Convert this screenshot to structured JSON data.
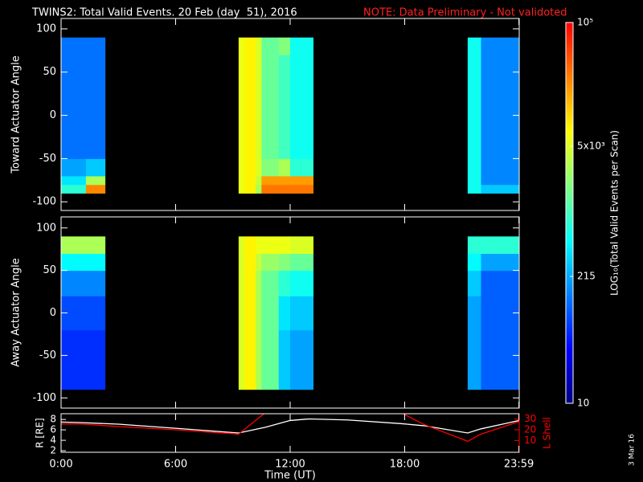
{
  "chart_data": {
    "type": "spectrogram",
    "title": "TWINS2: Total Valid Events. 20 Feb (day  51), 2016",
    "note": "NOTE: Data Preliminary - Not validoted",
    "xlabel": "Time (UT)",
    "xlim": [
      0,
      24
    ],
    "xticks": [
      {
        "value": 0,
        "label": "0:00"
      },
      {
        "value": 6,
        "label": "6:00"
      },
      {
        "value": 12,
        "label": "12:00"
      },
      {
        "value": 18,
        "label": "18:00"
      },
      {
        "value": 23.983,
        "label": "23:59"
      }
    ],
    "colorbar": {
      "label": "LOG₁₀(Total Valid Events per Scan)",
      "zlim": [
        10,
        100000
      ],
      "log": true,
      "ticks": [
        10,
        215,
        {
          "value": 5000,
          "label": "5x10³"
        },
        {
          "value": 100000,
          "label": "10⁵"
        }
      ],
      "colors": [
        "#00007f",
        "#0000ff",
        "#0080ff",
        "#00ffff",
        "#80ff80",
        "#ffff00",
        "#ff8000",
        "#ff0000"
      ]
    },
    "panels": [
      {
        "ylabel": "Toward Actuator Angle",
        "ylim": [
          -110,
          112
        ],
        "yticks": [
          -100,
          -50,
          0,
          50,
          100
        ],
        "y_edges": [
          -90,
          -80,
          -70,
          -50,
          -20,
          20,
          50,
          70,
          90
        ],
        "columns": [
          {
            "start": 0,
            "end": 1.3,
            "values": [
              800,
              400,
              200,
              120,
              120,
              120,
              120,
              120
            ]
          },
          {
            "start": 1.3,
            "end": 2.3,
            "values": [
              25000,
              3000,
              300,
              120,
              120,
              120,
              120,
              120
            ]
          },
          {
            "start": 9.3,
            "end": 9.6,
            "values": [
              6000,
              6000,
              6000,
              6000,
              6000,
              6000,
              6000,
              6000
            ]
          },
          {
            "start": 9.6,
            "end": 10.2,
            "values": [
              8000,
              8000,
              8000,
              8000,
              8000,
              8000,
              8000,
              8000
            ]
          },
          {
            "start": 10.2,
            "end": 10.5,
            "values": [
              3000,
              4000,
              5000,
              5000,
              5000,
              5000,
              5000,
              5000
            ]
          },
          {
            "start": 10.5,
            "end": 11.4,
            "values": [
              30000,
              20000,
              2000,
              1500,
              1500,
              1500,
              1500,
              1500
            ]
          },
          {
            "start": 11.4,
            "end": 12.0,
            "values": [
              30000,
              20000,
              3000,
              1000,
              1000,
              1000,
              1000,
              2000
            ]
          },
          {
            "start": 12.0,
            "end": 13.2,
            "values": [
              30000,
              20000,
              800,
              600,
              600,
              600,
              600,
              600
            ]
          },
          {
            "start": 21.3,
            "end": 22.0,
            "values": [
              600,
              600,
              600,
              600,
              600,
              600,
              600,
              600
            ]
          },
          {
            "start": 22.0,
            "end": 24,
            "values": [
              300,
              150,
              150,
              150,
              150,
              150,
              150,
              150
            ]
          }
        ]
      },
      {
        "ylabel": "Away Actuator Angle",
        "ylim": [
          -112,
          113
        ],
        "yticks": [
          -100,
          -50,
          0,
          50,
          100
        ],
        "y_edges": [
          -90,
          -80,
          -70,
          -50,
          -20,
          20,
          50,
          70,
          90
        ],
        "columns": [
          {
            "start": 0,
            "end": 2.3,
            "values": [
              60,
              60,
              60,
              60,
              80,
              150,
              500,
              3000
            ]
          },
          {
            "start": 9.3,
            "end": 9.6,
            "values": [
              5000,
              5000,
              5000,
              5000,
              5000,
              5000,
              5000,
              5000
            ]
          },
          {
            "start": 9.6,
            "end": 10.2,
            "values": [
              8000,
              8000,
              8000,
              8000,
              8000,
              8000,
              8000,
              8000
            ]
          },
          {
            "start": 10.2,
            "end": 10.5,
            "values": [
              3000,
              3000,
              3000,
              3000,
              3000,
              3000,
              4000,
              6000
            ]
          },
          {
            "start": 10.5,
            "end": 11.4,
            "values": [
              1500,
              1500,
              1500,
              1500,
              1500,
              1500,
              2500,
              6000
            ]
          },
          {
            "start": 11.4,
            "end": 12.0,
            "values": [
              300,
              300,
              300,
              300,
              400,
              800,
              2000,
              6000
            ]
          },
          {
            "start": 12.0,
            "end": 13.2,
            "values": [
              200,
              200,
              200,
              200,
              300,
              600,
              1500,
              5000
            ]
          },
          {
            "start": 21.3,
            "end": 22.0,
            "values": [
              200,
              200,
              200,
              200,
              200,
              300,
              500,
              800
            ]
          },
          {
            "start": 22.0,
            "end": 24,
            "values": [
              100,
              100,
              100,
              100,
              100,
              100,
              200,
              800
            ]
          }
        ]
      }
    ],
    "orbit": {
      "type": "line",
      "ylabel": "R [RE]",
      "y2label": "L Shell",
      "x": [
        0,
        1,
        3,
        6,
        9.3,
        10.7,
        12,
        13,
        15,
        17.8,
        19,
        21.3,
        22,
        24
      ],
      "ylim": [
        1.7,
        9.1
      ],
      "yticks": [
        2,
        4,
        6,
        8
      ],
      "y2lim": [
        -1,
        35
      ],
      "y2ticks": [
        10,
        20,
        30
      ],
      "series": [
        {
          "color": "#ffffff",
          "values": [
            7.5,
            7.4,
            7.1,
            6.3,
            5.4,
            6.5,
            7.8,
            8.1,
            7.9,
            7.2,
            6.8,
            5.4,
            6.2,
            7.8
          ]
        },
        {
          "color": "#ff0000",
          "axis": "y2",
          "values": [
            25.5,
            25.5,
            23,
            20,
            16,
            36,
            null,
            null,
            null,
            36,
            25,
            9.3,
            16,
            27.7
          ]
        }
      ]
    },
    "date_stamp": "3 Mar 16"
  }
}
